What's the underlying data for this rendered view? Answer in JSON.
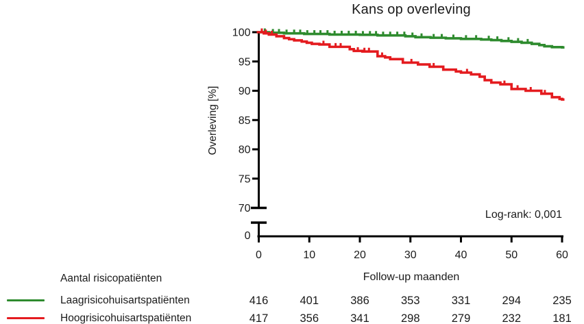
{
  "chart_data": {
    "type": "line",
    "subtype": "kaplan-meier-step",
    "title": "Kans op overleving",
    "xlabel": "Follow-up maanden",
    "ylabel": "Overleving [%]",
    "annotation": "Log-rank: 0,001",
    "xlim": [
      0,
      60
    ],
    "xticks": [
      0,
      10,
      20,
      30,
      40,
      50,
      60
    ],
    "ylim": [
      70,
      100
    ],
    "yticks": [
      100,
      95,
      90,
      85,
      80,
      75
    ],
    "y_break_tick": 70,
    "y_break_origin_label": "0",
    "grid": false,
    "legend_position": "bottom-left",
    "axis_color": "#000000",
    "text_color": "#1a1a1a",
    "series": [
      {
        "name": "Laagrisicohuisartspatiënten",
        "color": "#2e8b2e",
        "steps": [
          [
            0,
            100
          ],
          [
            2,
            99.9
          ],
          [
            5,
            99.8
          ],
          [
            9,
            99.7
          ],
          [
            14,
            99.6
          ],
          [
            20,
            99.55
          ],
          [
            23.5,
            99.45
          ],
          [
            29,
            99.3
          ],
          [
            31,
            99.15
          ],
          [
            34,
            99.05
          ],
          [
            37,
            98.95
          ],
          [
            40,
            98.85
          ],
          [
            44,
            98.75
          ],
          [
            46,
            98.65
          ],
          [
            48,
            98.5
          ],
          [
            50,
            98.35
          ],
          [
            52,
            98.2
          ],
          [
            54,
            98.0
          ],
          [
            55.5,
            97.8
          ],
          [
            56.5,
            97.6
          ],
          [
            58,
            97.45
          ],
          [
            60,
            97.4
          ]
        ],
        "censor_marks": [
          1.2,
          2.8,
          4,
          5.5,
          7,
          8.2,
          9.6,
          11,
          12.2,
          13.6,
          15,
          16.4,
          17.8,
          19.2,
          20.6,
          22,
          23.2,
          24.6,
          26,
          27.4,
          28.8,
          30.4,
          32.2,
          34.6,
          36.2,
          38.5,
          41,
          43,
          45.5,
          47.2,
          49.4,
          51.3,
          53.2
        ]
      },
      {
        "name": "Hoogrisicohuisartspatiënten",
        "color": "#e41b1f",
        "steps": [
          [
            0,
            100
          ],
          [
            1,
            99.8
          ],
          [
            2,
            99.6
          ],
          [
            3.5,
            99.3
          ],
          [
            5,
            99.0
          ],
          [
            6,
            98.8
          ],
          [
            7,
            98.6
          ],
          [
            8.5,
            98.4
          ],
          [
            9.5,
            98.2
          ],
          [
            10.5,
            98.0
          ],
          [
            12,
            97.9
          ],
          [
            14,
            97.5
          ],
          [
            18,
            97.1
          ],
          [
            18.8,
            96.8
          ],
          [
            20.5,
            96.7
          ],
          [
            23.5,
            95.9
          ],
          [
            25,
            95.7
          ],
          [
            26,
            95.4
          ],
          [
            28.5,
            94.8
          ],
          [
            31.5,
            94.5
          ],
          [
            33.8,
            94.1
          ],
          [
            36.5,
            93.6
          ],
          [
            39,
            93.3
          ],
          [
            40,
            93.1
          ],
          [
            42,
            92.8
          ],
          [
            43.7,
            92.4
          ],
          [
            44.7,
            91.8
          ],
          [
            46,
            91.4
          ],
          [
            47.8,
            91.1
          ],
          [
            50,
            90.3
          ],
          [
            52.8,
            90.0
          ],
          [
            55.9,
            89.5
          ],
          [
            58,
            88.9
          ],
          [
            59.5,
            88.6
          ],
          [
            60,
            88.5
          ]
        ],
        "censor_marks": [
          0.6,
          1.4,
          2.6,
          12.8,
          15.2,
          16.2,
          19.6,
          20.9,
          21.8,
          24.4,
          30.2,
          34.6,
          41.2,
          48.6,
          51.2,
          53.8,
          56.6
        ]
      }
    ],
    "risk_table": {
      "title": "Aantal risicopatiënten",
      "months": [
        0,
        10,
        20,
        30,
        40,
        50,
        60
      ],
      "rows": [
        {
          "name": "Laagrisicohuisartspatiënten",
          "color": "#2e8b2e",
          "counts": [
            416,
            401,
            386,
            353,
            331,
            294,
            235
          ]
        },
        {
          "name": "Hoogrisicohuisartspatiënten",
          "color": "#e41b1f",
          "counts": [
            417,
            356,
            341,
            298,
            279,
            232,
            181
          ]
        }
      ]
    }
  }
}
